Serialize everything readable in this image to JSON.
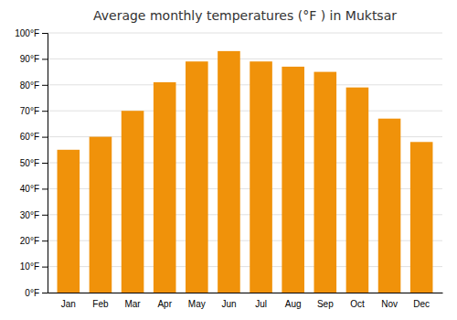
{
  "chart_data": {
    "type": "bar",
    "title": "Average monthly temperatures (°F ) in Muktsar",
    "categories": [
      "Jan",
      "Feb",
      "Mar",
      "Apr",
      "May",
      "Jun",
      "Jul",
      "Aug",
      "Sep",
      "Oct",
      "Nov",
      "Dec"
    ],
    "values": [
      55,
      60,
      70,
      81,
      89,
      93,
      89,
      87,
      85,
      79,
      67,
      58
    ],
    "color": "#F0920A",
    "ylim": [
      0,
      100
    ],
    "yticks": [
      {
        "value": 0,
        "label": "0°F"
      },
      {
        "value": 10,
        "label": "10°F"
      },
      {
        "value": 20,
        "label": "20°F"
      },
      {
        "value": 30,
        "label": "30°F"
      },
      {
        "value": 40,
        "label": "40°F"
      },
      {
        "value": 50,
        "label": "50°F"
      },
      {
        "value": 60,
        "label": "60°F"
      },
      {
        "value": 70,
        "label": "70°F"
      },
      {
        "value": 80,
        "label": "80°F"
      },
      {
        "value": 90,
        "label": "90°F"
      },
      {
        "value": 100,
        "label": "100°F"
      }
    ],
    "grid": true
  }
}
